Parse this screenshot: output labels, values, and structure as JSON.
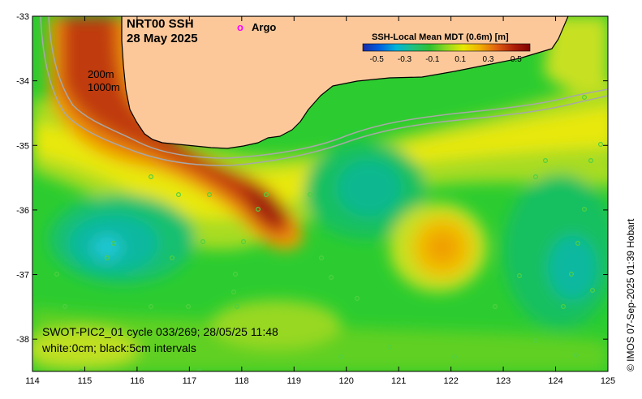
{
  "title": {
    "line1": "NRT00 SSH",
    "line2": "28 May 2025"
  },
  "legend": {
    "argo_symbol": "o",
    "argo_label": "Argo",
    "argo_color": "#ff00ff"
  },
  "isobaths": {
    "shallow": "200m",
    "deep": "1000m"
  },
  "colorbar": {
    "title": "SSH-Local Mean MDT (0.6m) [m]",
    "ticks": [
      "-0.5",
      "-0.3",
      "-0.1",
      "0.1",
      "0.3",
      "0.5"
    ],
    "colors": [
      "#1a2aa8",
      "#0060e0",
      "#00b4d8",
      "#20c080",
      "#30c030",
      "#90d820",
      "#e8e800",
      "#f0b000",
      "#e06010",
      "#b02008",
      "#800000"
    ]
  },
  "axes": {
    "x_ticks": [
      "114",
      "115",
      "116",
      "117",
      "118",
      "119",
      "120",
      "121",
      "122",
      "123",
      "124",
      "125"
    ],
    "y_ticks": [
      "-33",
      "-34",
      "-35",
      "-36",
      "-37",
      "-38"
    ],
    "x_range": [
      114,
      125
    ],
    "y_range": [
      -38.5,
      -33
    ]
  },
  "info": {
    "line1": "SWOT-PIC2_01 cycle 033/269; 28/05/25 11:48",
    "line2": "white:0cm; black:5cm intervals"
  },
  "credit": "© IMOS 07-Sep-2025 01:39 Hobart",
  "colors": {
    "land": "#fcc89a",
    "ocean_base": "#2ccc30",
    "isobath_line": "#a8a8a8"
  }
}
